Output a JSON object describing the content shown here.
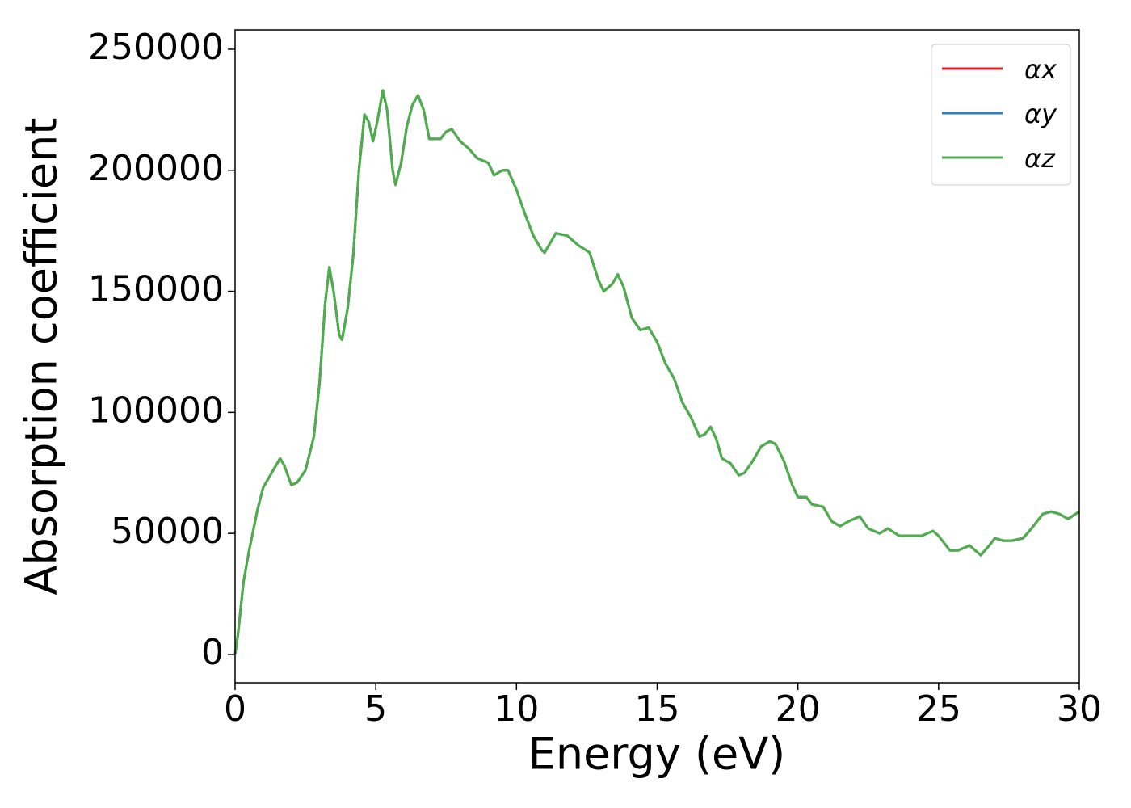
{
  "chart_data": {
    "type": "line",
    "xlabel": "Energy (eV)",
    "ylabel": "Absorption coefficient",
    "xlim": [
      0,
      30
    ],
    "xticks": [
      0,
      5,
      10,
      15,
      20,
      25,
      30
    ],
    "ylim": [
      -11700,
      258000
    ],
    "yticks": [
      0,
      50000,
      100000,
      150000,
      200000,
      250000
    ],
    "legend": "upper right",
    "grid": false,
    "x": [
      0,
      0.1,
      0.3,
      0.5,
      0.8,
      1.0,
      1.3,
      1.6,
      1.75,
      2.0,
      2.2,
      2.5,
      2.8,
      3.0,
      3.2,
      3.35,
      3.5,
      3.7,
      3.8,
      4.0,
      4.2,
      4.4,
      4.6,
      4.75,
      4.9,
      5.05,
      5.25,
      5.4,
      5.6,
      5.7,
      5.9,
      6.1,
      6.3,
      6.5,
      6.7,
      6.9,
      7.1,
      7.3,
      7.5,
      7.7,
      8.0,
      8.3,
      8.6,
      9.0,
      9.2,
      9.5,
      9.7,
      10.0,
      10.3,
      10.6,
      10.9,
      11.0,
      11.2,
      11.4,
      11.8,
      12.2,
      12.6,
      12.9,
      13.1,
      13.4,
      13.6,
      13.8,
      14.1,
      14.4,
      14.7,
      15.0,
      15.3,
      15.6,
      15.9,
      16.2,
      16.5,
      16.7,
      16.9,
      17.1,
      17.3,
      17.6,
      17.9,
      18.1,
      18.4,
      18.7,
      19.0,
      19.2,
      19.5,
      19.8,
      20.0,
      20.3,
      20.5,
      20.9,
      21.2,
      21.5,
      21.8,
      22.2,
      22.5,
      22.9,
      23.2,
      23.6,
      24.0,
      24.4,
      24.8,
      25.0,
      25.4,
      25.7,
      26.1,
      26.5,
      26.8,
      27.0,
      27.3,
      27.6,
      28.0,
      28.3,
      28.7,
      29.0,
      29.3,
      29.6,
      30.0
    ],
    "series": [
      {
        "name": "αx",
        "color": "#e41a1c",
        "values": [
          0,
          8000,
          30000,
          43000,
          60000,
          69000,
          75000,
          81000,
          78000,
          70000,
          71000,
          76000,
          90000,
          112000,
          145000,
          160000,
          150000,
          132000,
          130000,
          143000,
          165000,
          200000,
          223000,
          220000,
          212000,
          220000,
          233000,
          225000,
          200000,
          194000,
          203000,
          218000,
          227000,
          231000,
          225000,
          213000,
          213000,
          213000,
          216000,
          217000,
          212000,
          209000,
          205000,
          203000,
          198000,
          200000,
          200000,
          192000,
          182000,
          173000,
          167000,
          166000,
          170000,
          174000,
          173000,
          169000,
          166000,
          155000,
          150000,
          153000,
          157000,
          152000,
          139000,
          134000,
          135000,
          129000,
          120000,
          114000,
          104000,
          98000,
          90000,
          91000,
          94000,
          89000,
          81000,
          79000,
          74000,
          75000,
          80000,
          86000,
          88000,
          87000,
          80000,
          70000,
          65000,
          65000,
          62000,
          61000,
          55000,
          53000,
          55000,
          57000,
          52000,
          50000,
          52000,
          49000,
          49000,
          49000,
          51000,
          49000,
          43000,
          43000,
          45000,
          41000,
          45000,
          48000,
          47000,
          47000,
          48000,
          52000,
          58000,
          59000,
          58000,
          56000,
          59000
        ]
      },
      {
        "name": "αy",
        "color": "#377eb8",
        "values": [
          0,
          8000,
          30000,
          43000,
          60000,
          69000,
          75000,
          81000,
          78000,
          70000,
          71000,
          76000,
          90000,
          112000,
          145000,
          160000,
          150000,
          132000,
          130000,
          143000,
          165000,
          200000,
          223000,
          220000,
          212000,
          220000,
          233000,
          225000,
          200000,
          194000,
          203000,
          218000,
          227000,
          231000,
          225000,
          213000,
          213000,
          213000,
          216000,
          217000,
          212000,
          209000,
          205000,
          203000,
          198000,
          200000,
          200000,
          192000,
          182000,
          173000,
          167000,
          166000,
          170000,
          174000,
          173000,
          169000,
          166000,
          155000,
          150000,
          153000,
          157000,
          152000,
          139000,
          134000,
          135000,
          129000,
          120000,
          114000,
          104000,
          98000,
          90000,
          91000,
          94000,
          89000,
          81000,
          79000,
          74000,
          75000,
          80000,
          86000,
          88000,
          87000,
          80000,
          70000,
          65000,
          65000,
          62000,
          61000,
          55000,
          53000,
          55000,
          57000,
          52000,
          50000,
          52000,
          49000,
          49000,
          49000,
          51000,
          49000,
          43000,
          43000,
          45000,
          41000,
          45000,
          48000,
          47000,
          47000,
          48000,
          52000,
          58000,
          59000,
          58000,
          56000,
          59000
        ]
      },
      {
        "name": "αz",
        "color": "#4daf4a",
        "values": [
          0,
          8000,
          30000,
          43000,
          60000,
          69000,
          75000,
          81000,
          78000,
          70000,
          71000,
          76000,
          90000,
          112000,
          145000,
          160000,
          150000,
          132000,
          130000,
          143000,
          165000,
          200000,
          223000,
          220000,
          212000,
          220000,
          233000,
          225000,
          200000,
          194000,
          203000,
          218000,
          227000,
          231000,
          225000,
          213000,
          213000,
          213000,
          216000,
          217000,
          212000,
          209000,
          205000,
          203000,
          198000,
          200000,
          200000,
          192000,
          182000,
          173000,
          167000,
          166000,
          170000,
          174000,
          173000,
          169000,
          166000,
          155000,
          150000,
          153000,
          157000,
          152000,
          139000,
          134000,
          135000,
          129000,
          120000,
          114000,
          104000,
          98000,
          90000,
          91000,
          94000,
          89000,
          81000,
          79000,
          74000,
          75000,
          80000,
          86000,
          88000,
          87000,
          80000,
          70000,
          65000,
          65000,
          62000,
          61000,
          55000,
          53000,
          55000,
          57000,
          52000,
          50000,
          52000,
          49000,
          49000,
          49000,
          51000,
          49000,
          43000,
          43000,
          45000,
          41000,
          45000,
          48000,
          47000,
          47000,
          48000,
          52000,
          58000,
          59000,
          58000,
          56000,
          59000
        ]
      }
    ]
  }
}
